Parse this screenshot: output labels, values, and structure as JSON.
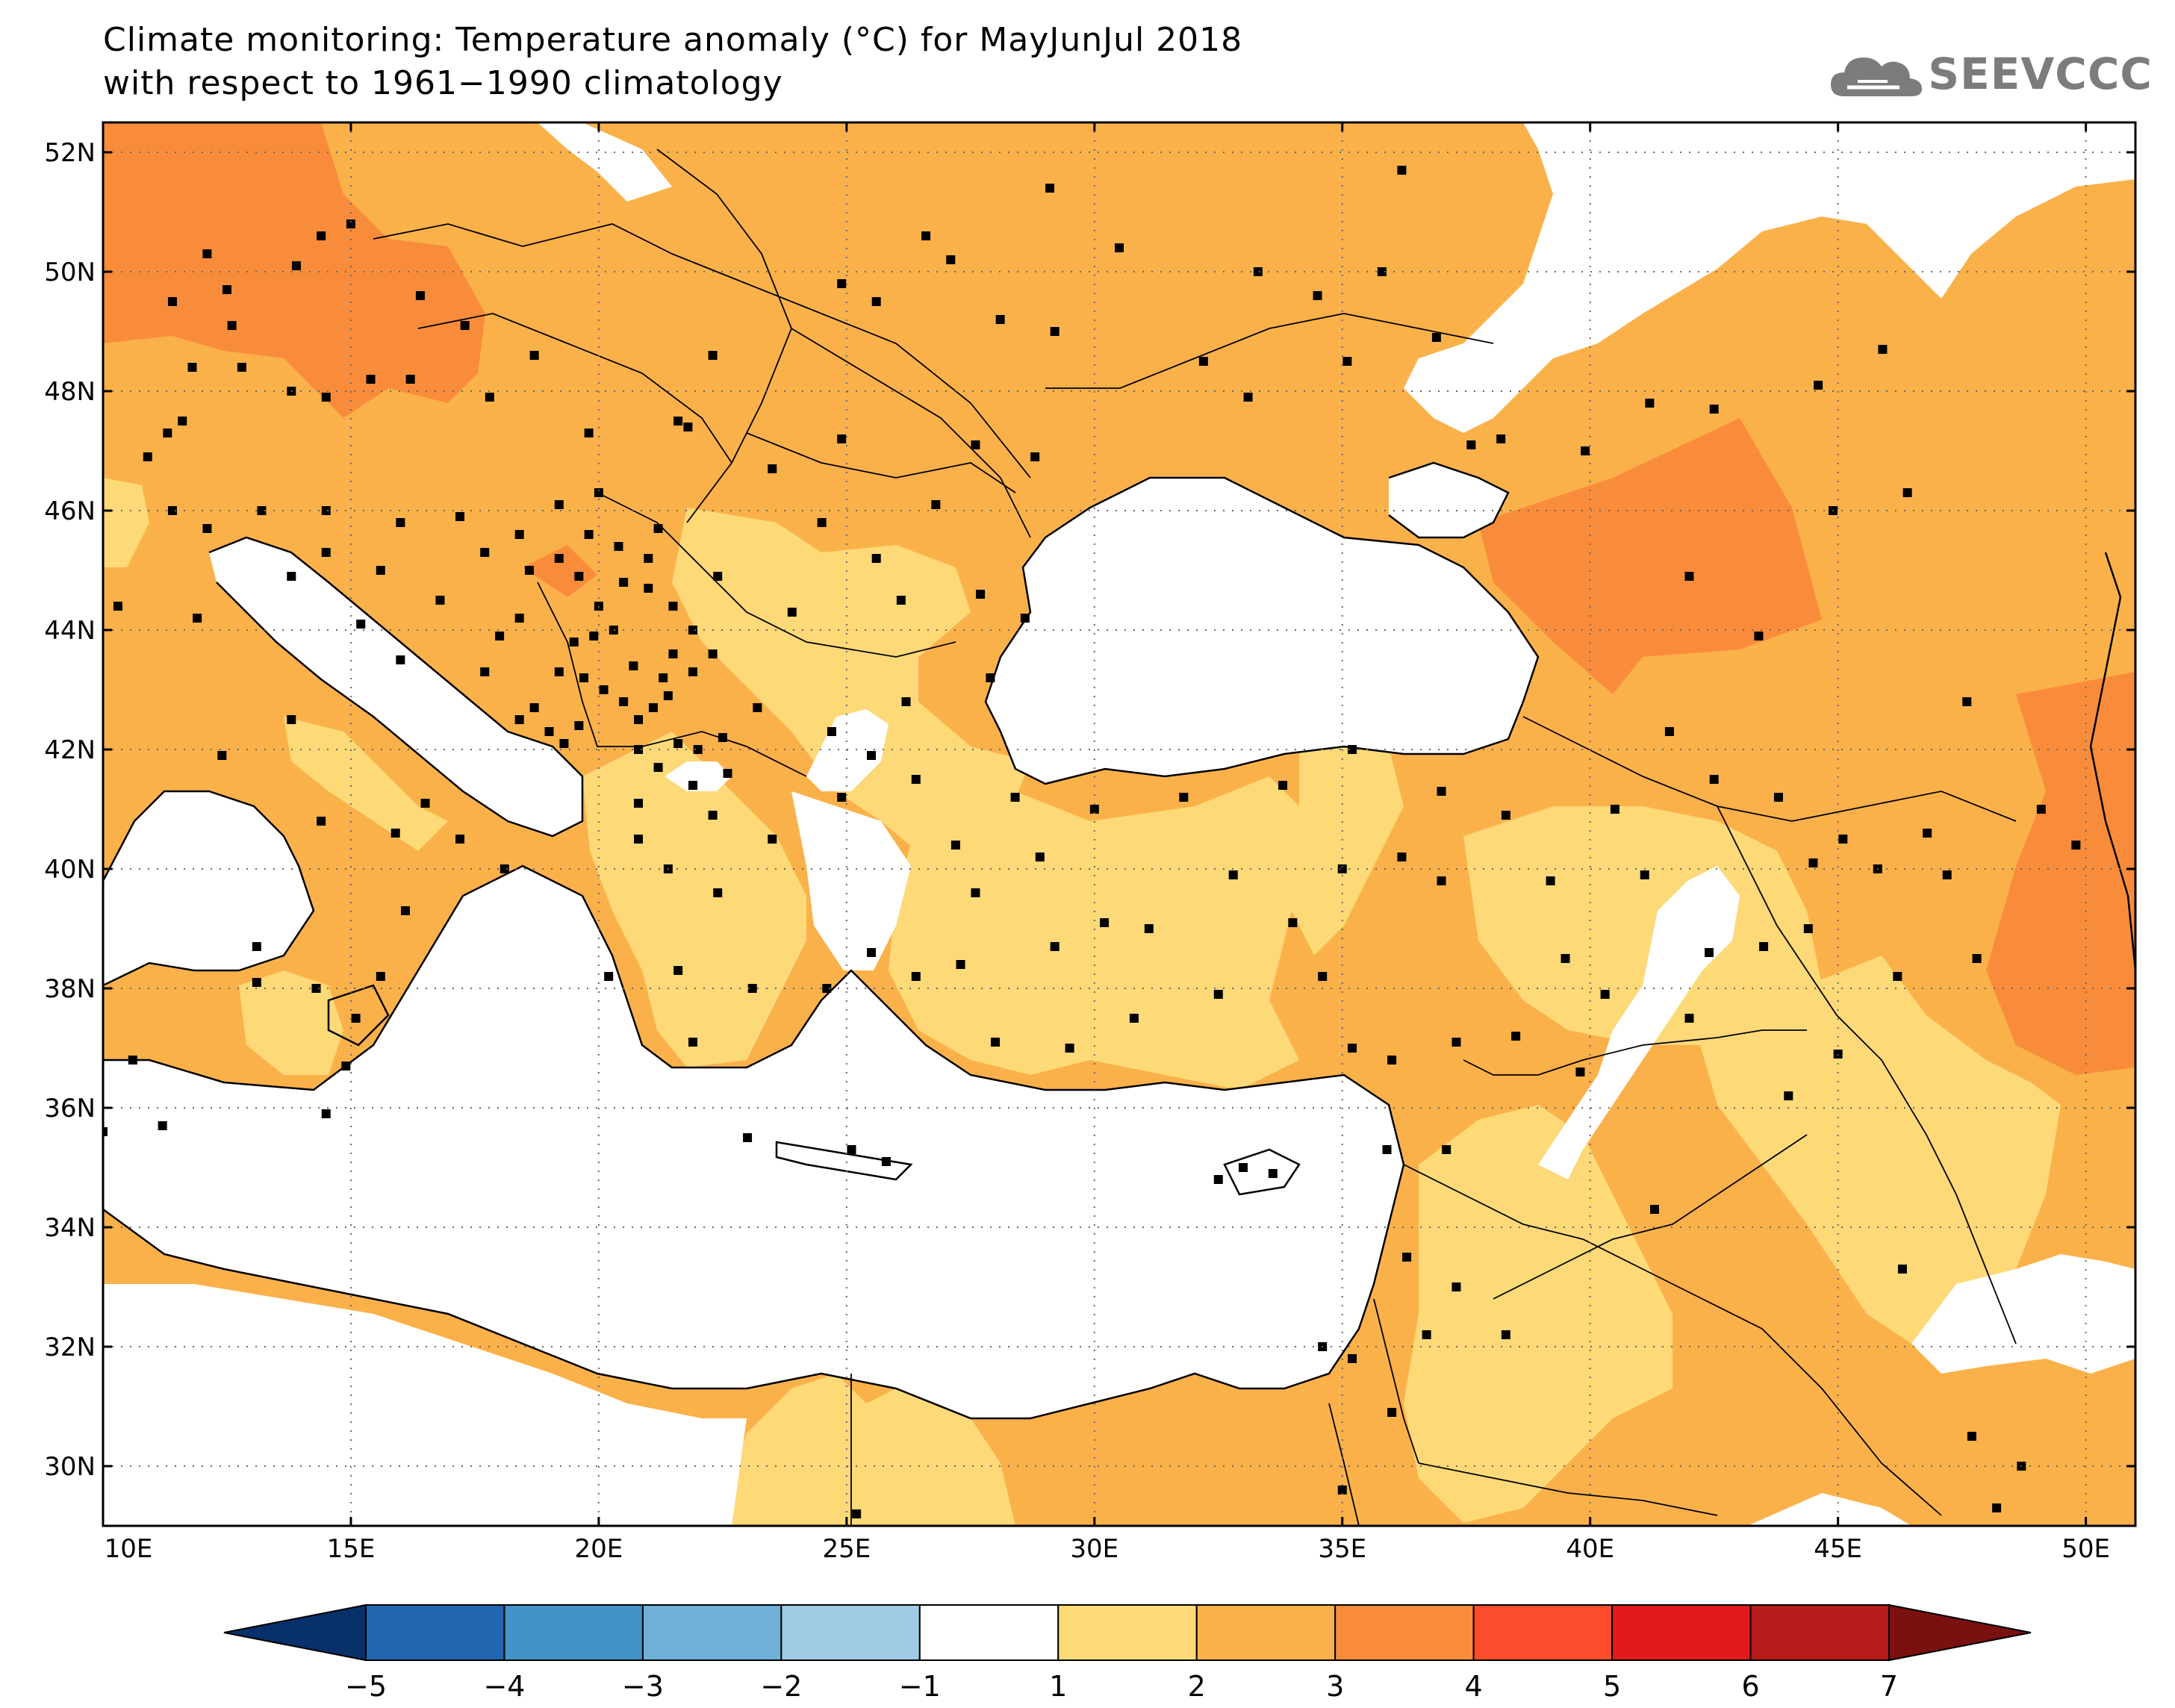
{
  "title": {
    "line1": "Climate monitoring: Temperature anomaly (°C) for MayJunJul 2018",
    "line2": "with respect to 1961−1990 climatology"
  },
  "logo": {
    "text": "SEEVCCC",
    "icon": "cloud-icon"
  },
  "map": {
    "lon_range": [
      10,
      51
    ],
    "lat_range": [
      29,
      52.5
    ],
    "lon_ticks": [
      {
        "value": 10,
        "label": "10E"
      },
      {
        "value": 15,
        "label": "15E"
      },
      {
        "value": 20,
        "label": "20E"
      },
      {
        "value": 25,
        "label": "25E"
      },
      {
        "value": 30,
        "label": "30E"
      },
      {
        "value": 35,
        "label": "35E"
      },
      {
        "value": 40,
        "label": "40E"
      },
      {
        "value": 45,
        "label": "45E"
      },
      {
        "value": 50,
        "label": "50E"
      }
    ],
    "lat_ticks": [
      {
        "value": 30,
        "label": "30N"
      },
      {
        "value": 32,
        "label": "32N"
      },
      {
        "value": 34,
        "label": "34N"
      },
      {
        "value": 36,
        "label": "36N"
      },
      {
        "value": 38,
        "label": "38N"
      },
      {
        "value": 40,
        "label": "40N"
      },
      {
        "value": 42,
        "label": "42N"
      },
      {
        "value": 44,
        "label": "44N"
      },
      {
        "value": 46,
        "label": "46N"
      },
      {
        "value": 48,
        "label": "48N"
      },
      {
        "value": 50,
        "label": "50N"
      },
      {
        "value": 52,
        "label": "52N"
      }
    ],
    "gridlines": "dotted",
    "colors": {
      "c1_2": "#fdd978",
      "c2_3": "#fbb14a",
      "c3_4": "#f98c3b",
      "water": "#ffffff"
    },
    "stations": [
      [
        11.4,
        49.5
      ],
      [
        12.1,
        50.3
      ],
      [
        12.5,
        49.7
      ],
      [
        12.6,
        49.1
      ],
      [
        13.9,
        50.1
      ],
      [
        14.4,
        50.6
      ],
      [
        15.0,
        50.8
      ],
      [
        16.4,
        49.6
      ],
      [
        17.3,
        49.1
      ],
      [
        11.8,
        48.4
      ],
      [
        12.8,
        48.4
      ],
      [
        13.8,
        48.0
      ],
      [
        14.5,
        47.9
      ],
      [
        15.4,
        48.2
      ],
      [
        16.2,
        48.2
      ],
      [
        17.8,
        47.9
      ],
      [
        18.7,
        48.6
      ],
      [
        19.8,
        47.3
      ],
      [
        21.6,
        47.5
      ],
      [
        22.3,
        48.6
      ],
      [
        24.9,
        49.8
      ],
      [
        25.6,
        49.5
      ],
      [
        26.6,
        50.6
      ],
      [
        27.1,
        50.2
      ],
      [
        28.1,
        49.2
      ],
      [
        29.2,
        49.0
      ],
      [
        29.1,
        51.4
      ],
      [
        30.5,
        50.4
      ],
      [
        32.2,
        48.5
      ],
      [
        33.1,
        47.9
      ],
      [
        33.3,
        50.0
      ],
      [
        34.5,
        49.6
      ],
      [
        35.1,
        48.5
      ],
      [
        35.8,
        50.0
      ],
      [
        36.2,
        51.7
      ],
      [
        36.9,
        48.9
      ],
      [
        37.6,
        47.1
      ],
      [
        38.2,
        47.2
      ],
      [
        39.9,
        47.0
      ],
      [
        41.2,
        47.8
      ],
      [
        44.6,
        48.1
      ],
      [
        45.9,
        48.7
      ],
      [
        46.4,
        46.3
      ],
      [
        42.5,
        47.7
      ],
      [
        44.9,
        46.0
      ],
      [
        42.0,
        44.9
      ],
      [
        43.4,
        43.9
      ],
      [
        47.6,
        42.8
      ],
      [
        47.2,
        39.9
      ],
      [
        49.1,
        41.0
      ],
      [
        49.8,
        40.4
      ],
      [
        46.8,
        40.6
      ],
      [
        44.5,
        40.1
      ],
      [
        43.8,
        41.2
      ],
      [
        45.1,
        40.5
      ],
      [
        41.6,
        42.3
      ],
      [
        42.5,
        41.5
      ],
      [
        40.5,
        41.0
      ],
      [
        38.3,
        40.9
      ],
      [
        37.0,
        41.3
      ],
      [
        35.2,
        42.0
      ],
      [
        33.8,
        41.4
      ],
      [
        31.8,
        41.2
      ],
      [
        30.0,
        41.0
      ],
      [
        28.4,
        41.2
      ],
      [
        27.2,
        40.4
      ],
      [
        26.4,
        41.5
      ],
      [
        28.9,
        40.2
      ],
      [
        27.6,
        39.6
      ],
      [
        29.2,
        38.7
      ],
      [
        30.2,
        39.1
      ],
      [
        31.1,
        39.0
      ],
      [
        32.8,
        39.9
      ],
      [
        34.0,
        39.1
      ],
      [
        35.0,
        40.0
      ],
      [
        36.2,
        40.2
      ],
      [
        37.0,
        39.8
      ],
      [
        39.5,
        38.5
      ],
      [
        39.2,
        39.8
      ],
      [
        41.1,
        39.9
      ],
      [
        42.4,
        38.6
      ],
      [
        43.5,
        38.7
      ],
      [
        44.4,
        39.0
      ],
      [
        45.8,
        40.0
      ],
      [
        47.8,
        38.5
      ],
      [
        46.2,
        38.2
      ],
      [
        45.0,
        36.9
      ],
      [
        44.0,
        36.2
      ],
      [
        42.0,
        37.5
      ],
      [
        40.3,
        37.9
      ],
      [
        39.8,
        36.6
      ],
      [
        38.5,
        37.2
      ],
      [
        37.3,
        37.1
      ],
      [
        36.0,
        36.8
      ],
      [
        35.2,
        37.0
      ],
      [
        34.6,
        38.2
      ],
      [
        32.5,
        37.9
      ],
      [
        30.8,
        37.5
      ],
      [
        29.5,
        37.0
      ],
      [
        28.0,
        37.1
      ],
      [
        27.3,
        38.4
      ],
      [
        26.4,
        38.2
      ],
      [
        25.5,
        38.6
      ],
      [
        24.6,
        38.0
      ],
      [
        23.1,
        38.0
      ],
      [
        21.6,
        38.3
      ],
      [
        20.2,
        38.2
      ],
      [
        21.9,
        37.1
      ],
      [
        22.4,
        39.6
      ],
      [
        21.4,
        40.0
      ],
      [
        20.8,
        40.5
      ],
      [
        22.3,
        40.9
      ],
      [
        23.5,
        40.5
      ],
      [
        24.9,
        41.2
      ],
      [
        25.5,
        41.9
      ],
      [
        23.2,
        42.7
      ],
      [
        24.7,
        42.3
      ],
      [
        26.2,
        42.8
      ],
      [
        27.9,
        43.2
      ],
      [
        23.9,
        44.3
      ],
      [
        22.4,
        44.9
      ],
      [
        24.5,
        45.8
      ],
      [
        25.6,
        45.2
      ],
      [
        26.1,
        44.5
      ],
      [
        27.7,
        44.6
      ],
      [
        28.6,
        44.2
      ],
      [
        26.8,
        46.1
      ],
      [
        28.8,
        46.9
      ],
      [
        27.6,
        47.1
      ],
      [
        24.9,
        47.2
      ],
      [
        23.5,
        46.7
      ],
      [
        21.8,
        47.4
      ],
      [
        20.0,
        46.3
      ],
      [
        21.2,
        45.7
      ],
      [
        19.2,
        46.1
      ],
      [
        18.4,
        45.6
      ],
      [
        17.2,
        45.9
      ],
      [
        16.0,
        45.8
      ],
      [
        14.5,
        46.0
      ],
      [
        13.2,
        46.0
      ],
      [
        12.1,
        45.7
      ],
      [
        11.4,
        46.0
      ],
      [
        11.3,
        47.3
      ],
      [
        10.9,
        46.9
      ],
      [
        11.6,
        47.5
      ],
      [
        10.3,
        44.4
      ],
      [
        11.9,
        44.2
      ],
      [
        12.4,
        41.9
      ],
      [
        13.8,
        42.5
      ],
      [
        14.4,
        40.8
      ],
      [
        15.9,
        40.6
      ],
      [
        16.5,
        41.1
      ],
      [
        17.2,
        40.5
      ],
      [
        18.1,
        40.0
      ],
      [
        16.1,
        39.3
      ],
      [
        15.6,
        38.2
      ],
      [
        14.3,
        38.0
      ],
      [
        13.1,
        38.1
      ],
      [
        15.1,
        37.5
      ],
      [
        14.9,
        36.7
      ],
      [
        13.1,
        38.7
      ],
      [
        10.6,
        36.8
      ],
      [
        10.0,
        35.6
      ],
      [
        11.2,
        35.7
      ],
      [
        14.5,
        35.9
      ],
      [
        23.0,
        35.5
      ],
      [
        25.1,
        35.3
      ],
      [
        25.8,
        35.1
      ],
      [
        33.0,
        35.0
      ],
      [
        33.6,
        34.9
      ],
      [
        32.5,
        34.8
      ],
      [
        34.6,
        32.0
      ],
      [
        35.2,
        31.8
      ],
      [
        35.0,
        29.6
      ],
      [
        36.0,
        30.9
      ],
      [
        36.7,
        32.2
      ],
      [
        37.3,
        33.0
      ],
      [
        36.3,
        33.5
      ],
      [
        35.9,
        35.3
      ],
      [
        37.1,
        35.3
      ],
      [
        38.3,
        32.2
      ],
      [
        41.3,
        34.3
      ],
      [
        46.3,
        33.3
      ],
      [
        48.7,
        30.0
      ],
      [
        47.7,
        30.5
      ],
      [
        48.2,
        29.3
      ],
      [
        25.2,
        29.2
      ],
      [
        18.4,
        42.5
      ],
      [
        18.7,
        42.7
      ],
      [
        19.0,
        42.3
      ],
      [
        19.3,
        42.1
      ],
      [
        19.6,
        42.4
      ],
      [
        19.2,
        43.3
      ],
      [
        19.5,
        43.8
      ],
      [
        19.7,
        43.2
      ],
      [
        20.1,
        43.0
      ],
      [
        20.5,
        42.8
      ],
      [
        20.8,
        42.5
      ],
      [
        21.1,
        42.7
      ],
      [
        21.4,
        42.9
      ],
      [
        21.9,
        43.3
      ],
      [
        22.3,
        43.6
      ],
      [
        21.9,
        44.0
      ],
      [
        21.5,
        44.4
      ],
      [
        21.0,
        44.7
      ],
      [
        20.5,
        44.8
      ],
      [
        20.0,
        44.4
      ],
      [
        19.6,
        44.9
      ],
      [
        19.2,
        45.2
      ],
      [
        19.8,
        45.6
      ],
      [
        20.4,
        45.4
      ],
      [
        21.0,
        45.2
      ],
      [
        21.5,
        43.6
      ],
      [
        20.7,
        43.4
      ],
      [
        20.3,
        44.0
      ],
      [
        20.8,
        42.0
      ],
      [
        21.2,
        41.7
      ],
      [
        21.6,
        42.1
      ],
      [
        22.0,
        42.0
      ],
      [
        22.5,
        42.2
      ],
      [
        21.9,
        41.4
      ],
      [
        22.6,
        41.6
      ],
      [
        20.8,
        41.1
      ],
      [
        18.0,
        43.9
      ],
      [
        17.7,
        43.3
      ],
      [
        16.8,
        44.5
      ],
      [
        16.0,
        43.5
      ],
      [
        15.2,
        44.1
      ],
      [
        14.5,
        45.3
      ],
      [
        13.8,
        44.9
      ],
      [
        15.6,
        45.0
      ],
      [
        17.7,
        45.3
      ],
      [
        18.6,
        45.0
      ],
      [
        18.4,
        44.2
      ],
      [
        19.9,
        43.9
      ],
      [
        21.3,
        43.2
      ]
    ]
  },
  "colorbar": {
    "labels": [
      "−5",
      "−4",
      "−3",
      "−2",
      "−1",
      "1",
      "2",
      "3",
      "4",
      "5",
      "6",
      "7"
    ],
    "colors": [
      "#08306b",
      "#2267ae",
      "#4393c8",
      "#6fb0d9",
      "#9fcbe4",
      "#ffffff",
      "#fdd978",
      "#fbb14a",
      "#f98c3b",
      "#fb4d2c",
      "#e31a1c",
      "#b71b1b",
      "#7a1010"
    ]
  }
}
